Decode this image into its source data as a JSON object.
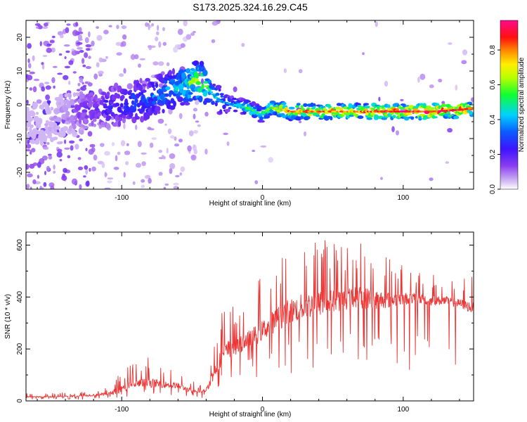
{
  "title": "S173.2025.324.16.29.C45",
  "chart_data": [
    {
      "type": "heatmap",
      "xlabel": "Height of straight line (km)",
      "ylabel": "Frequency (Hz)",
      "xlim": [
        -168,
        150
      ],
      "ylim": [
        -25,
        25
      ],
      "xticks": [
        -100,
        0,
        100
      ],
      "yticks": [
        20,
        10,
        0,
        -10,
        -20
      ],
      "colorbar": {
        "label": "Normalized spectral amplitude",
        "range": [
          0,
          0.97
        ],
        "ticks": [
          0.0,
          0.2,
          0.4,
          0.6,
          0.8
        ],
        "colormap": "rainbow (lavender→purple→blue→cyan→green→yellow→orange→red→magenta)"
      },
      "ridge": {
        "description": "dominant frequency track",
        "x": [
          -160,
          -140,
          -120,
          -100,
          -80,
          -60,
          -50,
          -45,
          -42,
          -35,
          -30,
          -20,
          -10,
          0,
          5,
          10,
          20,
          40,
          60,
          80,
          100,
          120,
          140,
          150
        ],
        "y": [
          -6,
          -3,
          -1,
          0,
          2,
          5,
          6.5,
          7,
          6.5,
          3,
          1,
          0,
          -1,
          -3,
          -1,
          -1,
          -2,
          -2,
          -2,
          -2,
          -2,
          -2,
          -1.5,
          -1
        ],
        "amplitude": [
          0.05,
          0.1,
          0.2,
          0.3,
          0.35,
          0.45,
          0.6,
          0.7,
          0.6,
          0.45,
          0.4,
          0.4,
          0.55,
          0.5,
          0.6,
          0.65,
          0.8,
          0.8,
          0.8,
          0.85,
          0.9,
          0.95,
          0.9,
          0.8
        ]
      },
      "colors": {
        "low": "#c8a8f0",
        "purple": "#6a14e6",
        "blue": "#1428ff",
        "cyan": "#00d8ff",
        "green": "#32ff00",
        "yellow": "#ffff00",
        "red": "#ff0000"
      }
    },
    {
      "type": "line",
      "xlabel": "Height of straight line (km)",
      "ylabel": "SNR (10 * v/v)",
      "xlim": [
        -168,
        150
      ],
      "ylim": [
        0,
        650
      ],
      "xticks": [
        -100,
        0,
        100
      ],
      "yticks": [
        0,
        200,
        400,
        600
      ],
      "series": [
        {
          "color": "#ee3333",
          "x": [
            -168,
            -150,
            -130,
            -110,
            -100,
            -90,
            -80,
            -70,
            -60,
            -50,
            -45,
            -40,
            -35,
            -30,
            -25,
            -20,
            -15,
            -10,
            -5,
            0,
            5,
            10,
            15,
            20,
            25,
            30,
            40,
            50,
            60,
            70,
            80,
            90,
            100,
            110,
            120,
            130,
            140,
            150
          ],
          "mean": [
            15,
            15,
            18,
            25,
            40,
            60,
            65,
            60,
            55,
            35,
            30,
            40,
            90,
            150,
            180,
            190,
            210,
            230,
            240,
            260,
            280,
            300,
            320,
            330,
            340,
            350,
            360,
            370,
            380,
            385,
            380,
            380,
            385,
            390,
            380,
            380,
            370,
            350
          ],
          "peak": [
            30,
            30,
            35,
            55,
            120,
            160,
            170,
            130,
            120,
            80,
            60,
            80,
            250,
            330,
            430,
            350,
            390,
            420,
            460,
            480,
            520,
            560,
            600,
            620,
            630,
            640,
            650,
            630,
            620,
            640,
            600,
            560,
            520,
            500,
            490,
            480,
            470,
            480
          ]
        }
      ]
    }
  ]
}
